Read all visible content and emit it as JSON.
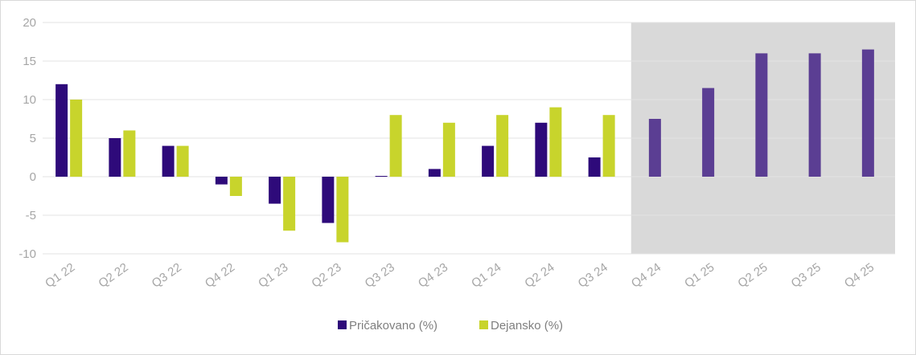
{
  "chart_data": {
    "type": "bar",
    "categories": [
      "Q1 22",
      "Q2 22",
      "Q3 22",
      "Q4 22",
      "Q1 23",
      "Q2 23",
      "Q3 23",
      "Q4 23",
      "Q1 24",
      "Q2 24",
      "Q3 24",
      "Q4 24",
      "Q1 25",
      "Q2 25",
      "Q3 25",
      "Q4 25"
    ],
    "series": [
      {
        "name": "Pričakovano (%)",
        "color": "#2e0a7a",
        "values": [
          12,
          5,
          4,
          -1,
          -3.5,
          -6,
          0.1,
          1,
          4,
          7,
          2.5,
          null,
          null,
          null,
          null,
          null
        ]
      },
      {
        "name": "Dejansko (%)",
        "color": "#c8d42c",
        "values": [
          10,
          6,
          4,
          -2.5,
          -7,
          -8.5,
          8,
          7,
          8,
          9,
          8,
          null,
          null,
          null,
          null,
          null
        ]
      },
      {
        "name": "",
        "color": "#5b3e93",
        "values": [
          null,
          null,
          null,
          null,
          null,
          null,
          null,
          null,
          null,
          null,
          null,
          7.5,
          11.5,
          16,
          16,
          16.5
        ]
      }
    ],
    "ylim": [
      -10,
      20
    ],
    "yticks": [
      20,
      15,
      10,
      5,
      0,
      -5,
      -10
    ],
    "grid": true,
    "shaded_region": {
      "from_category": "Q4 24",
      "to_category": "Q4 25",
      "color": "#d9d9d9"
    },
    "legend_placement": "bottom-center",
    "title": "",
    "xlabel": "",
    "ylabel": ""
  }
}
